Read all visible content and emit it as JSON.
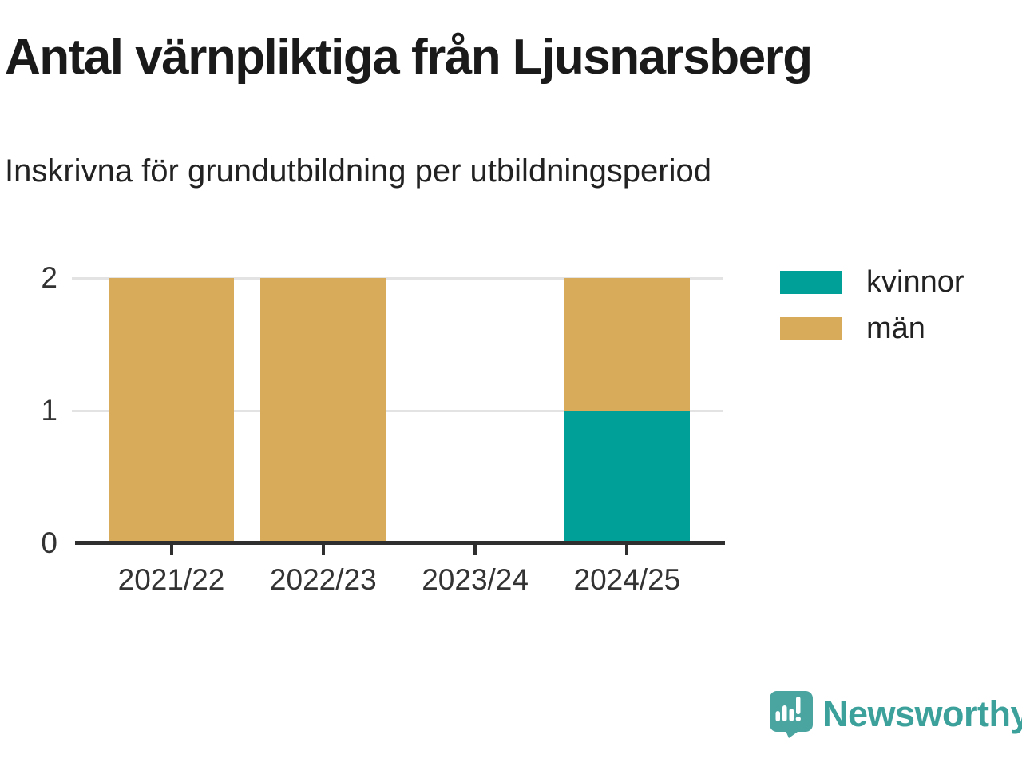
{
  "chart_data": {
    "type": "bar",
    "stacked": true,
    "title": "Antal värnpliktiga från Ljusnarsberg",
    "subtitle": "Inskrivna för grundutbildning per utbildningsperiod",
    "categories": [
      "2021/22",
      "2022/23",
      "2023/24",
      "2024/25"
    ],
    "series": [
      {
        "name": "kvinnor",
        "color": "#00A099",
        "values": [
          0,
          0,
          0,
          1
        ]
      },
      {
        "name": "män",
        "color": "#D8AB5A",
        "values": [
          2,
          2,
          0,
          1
        ]
      }
    ],
    "ylim": [
      0,
      2
    ],
    "yticks": [
      0,
      1,
      2
    ],
    "xlabel": "",
    "ylabel": "",
    "grid": "horizontal",
    "legend_position": "upper-right"
  },
  "legend": {
    "items": [
      {
        "label": "kvinnor",
        "color": "#00A099"
      },
      {
        "label": "män",
        "color": "#D8AB5A"
      }
    ]
  },
  "branding": {
    "logo_text": "Newsworthy"
  },
  "colors": {
    "title": "#1A1A1A",
    "axis": "#2F2F2F",
    "grid": "#E3E3E3",
    "tick_text": "#333333",
    "logo_text": "#3CA09B",
    "logo_icon": "#4AA4A0"
  }
}
